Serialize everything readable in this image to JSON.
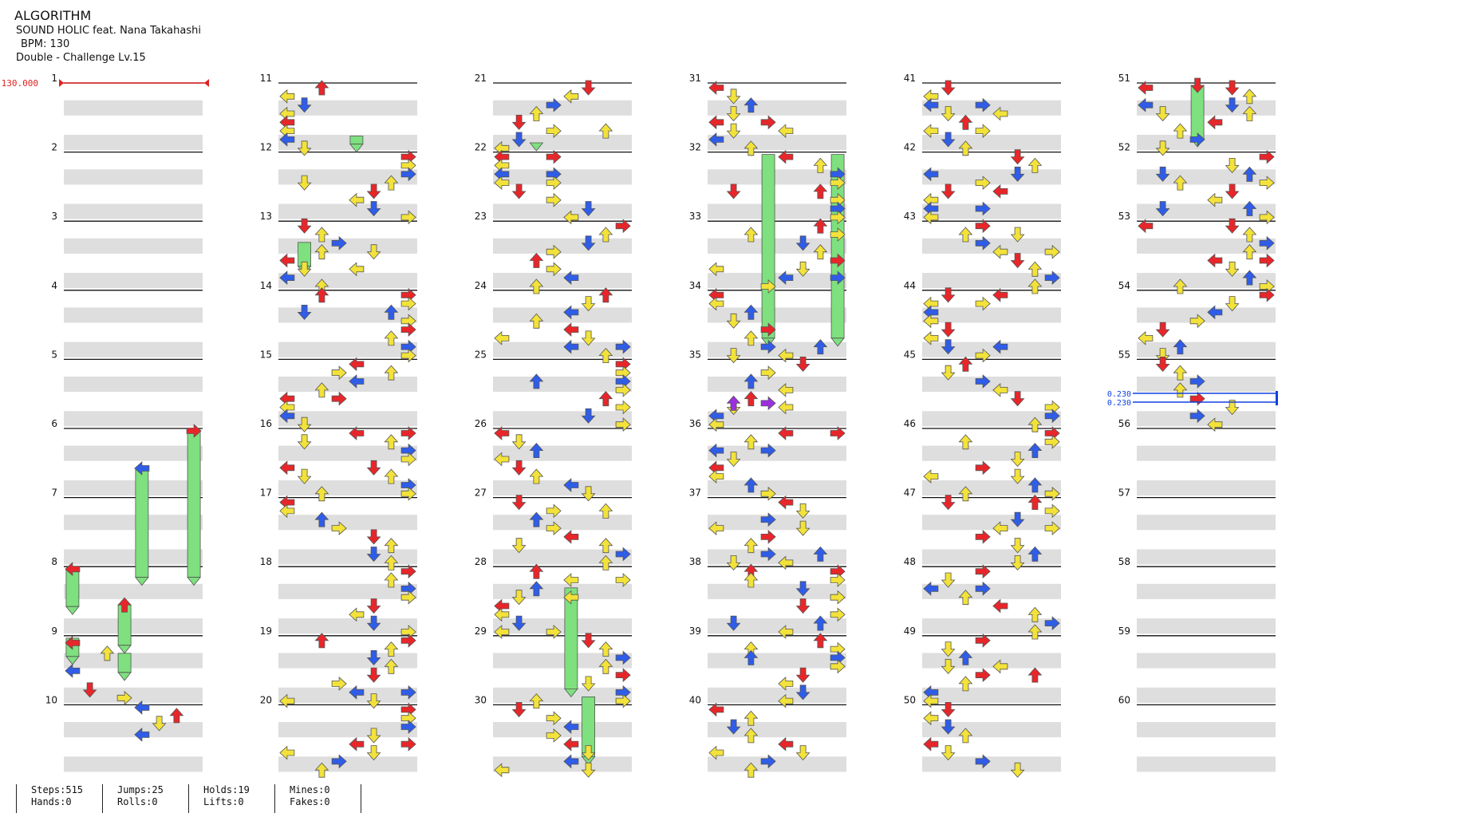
{
  "song": {
    "title": "ALGORITHM",
    "artist": "SOUND HOLIC feat. Nana Takahashi",
    "bpm_label": "BPM: 130",
    "difficulty": "Double - Challenge Lv.15"
  },
  "bpm_marker": "130.000",
  "scroll_markers": [
    "0.230",
    "0.230"
  ],
  "measures": [
    "1",
    "2",
    "3",
    "4",
    "5",
    "6",
    "7",
    "8",
    "9",
    "10",
    "11",
    "12",
    "13",
    "14",
    "15",
    "16",
    "17",
    "18",
    "19",
    "20",
    "21",
    "22",
    "23",
    "24",
    "25",
    "26",
    "27",
    "28",
    "29",
    "30",
    "31",
    "32",
    "33",
    "34",
    "35",
    "36",
    "37",
    "38",
    "39",
    "40",
    "41",
    "42",
    "43",
    "44",
    "45",
    "46",
    "47",
    "48",
    "49",
    "50",
    "51",
    "52",
    "53",
    "54",
    "55",
    "56",
    "57",
    "58",
    "59",
    "60"
  ],
  "stats": {
    "steps": "Steps:515",
    "hands": "Hands:0",
    "jumps": "Jumps:25",
    "rolls": "Rolls:0",
    "holds": "Holds:19",
    "lifts": "Lifts:0",
    "mines": "Mines:0",
    "fakes": "Fakes:0"
  },
  "colors": {
    "quarter": "#e8262a",
    "eighth": "#2f5de8",
    "sixteenth": "#f2e23a",
    "twelfth": "#9c2fe0",
    "hold": "#7ee07e",
    "band": "#dedede",
    "bpm_marker": "#e02020",
    "scroll_marker": "#1040e0"
  }
}
